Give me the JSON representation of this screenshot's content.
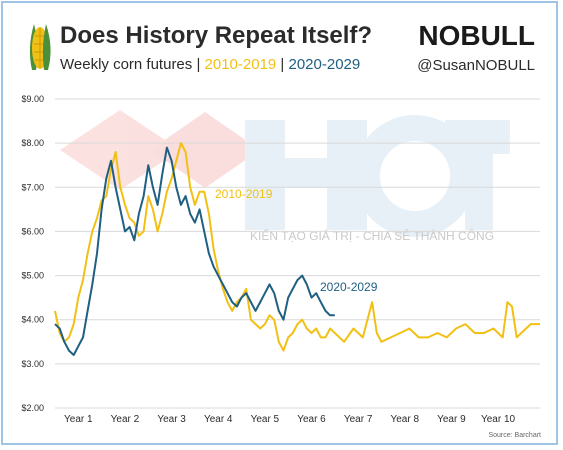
{
  "header": {
    "title": "Does History Repeat Itself?",
    "subtitle_prefix": "Weekly corn futures | ",
    "subtitle_series1": "2010-2019",
    "subtitle_sep": " | ",
    "subtitle_series2": "2020-2029",
    "brand": "NOBULL",
    "handle": "@SusanNOBULL"
  },
  "watermark": {
    "logo_text": "HCT",
    "tagline": "KIẾN TẠO GIÁ TRỊ - CHIA SẺ THÀNH CÔNG"
  },
  "source": "Source: Barchart",
  "colors": {
    "series_2010": "#f2c014",
    "series_2020": "#1f5f82",
    "grid": "#d9d9d9",
    "text": "#2b2b2b"
  },
  "icons": {
    "corn": "corn-icon"
  },
  "chart_data": {
    "type": "line",
    "title": "Does History Repeat Itself?",
    "subtitle": "Weekly corn futures | 2010-2019 | 2020-2029",
    "ylabel": "",
    "xlabel": "",
    "ylim": [
      2,
      9
    ],
    "xlim": [
      0,
      10.4
    ],
    "yticks": [
      "$2.00",
      "$3.00",
      "$4.00",
      "$5.00",
      "$6.00",
      "$7.00",
      "$8.00",
      "$9.00"
    ],
    "xtick_labels": [
      "Year 1",
      "Year 2",
      "Year 3",
      "Year 4",
      "Year 5",
      "Year 6",
      "Year 7",
      "Year 8",
      "Year 9",
      "Year 10"
    ],
    "grid": true,
    "series": [
      {
        "name": "2010-2019",
        "label": "2010-2019",
        "x": [
          0,
          0.1,
          0.2,
          0.3,
          0.4,
          0.5,
          0.6,
          0.7,
          0.8,
          0.9,
          1.0,
          1.1,
          1.2,
          1.3,
          1.4,
          1.5,
          1.6,
          1.7,
          1.8,
          1.9,
          2.0,
          2.1,
          2.2,
          2.3,
          2.4,
          2.5,
          2.6,
          2.7,
          2.8,
          2.9,
          3.0,
          3.1,
          3.2,
          3.3,
          3.4,
          3.5,
          3.6,
          3.7,
          3.8,
          3.9,
          4.0,
          4.1,
          4.2,
          4.3,
          4.4,
          4.5,
          4.6,
          4.7,
          4.8,
          4.9,
          5.0,
          5.1,
          5.2,
          5.3,
          5.4,
          5.5,
          5.6,
          5.7,
          5.8,
          5.9,
          6.0,
          6.2,
          6.4,
          6.6,
          6.8,
          6.9,
          7.0,
          7.2,
          7.4,
          7.6,
          7.8,
          8.0,
          8.2,
          8.4,
          8.6,
          8.8,
          9.0,
          9.2,
          9.4,
          9.6,
          9.7,
          9.8,
          9.9,
          10.0,
          10.2,
          10.4
        ],
        "values": [
          4.2,
          3.7,
          3.5,
          3.6,
          3.9,
          4.5,
          4.9,
          5.5,
          6.0,
          6.3,
          6.7,
          6.8,
          7.4,
          7.8,
          7.0,
          6.6,
          6.3,
          6.2,
          5.9,
          6.0,
          6.8,
          6.5,
          6.0,
          6.4,
          6.9,
          7.2,
          7.6,
          8.0,
          7.8,
          7.0,
          6.6,
          6.9,
          6.9,
          6.4,
          5.6,
          5.1,
          4.7,
          4.4,
          4.2,
          4.4,
          4.5,
          4.7,
          4.0,
          3.9,
          3.8,
          3.9,
          4.1,
          4.0,
          3.5,
          3.3,
          3.6,
          3.7,
          3.9,
          4.0,
          3.8,
          3.7,
          3.8,
          3.6,
          3.6,
          3.8,
          3.7,
          3.5,
          3.8,
          3.6,
          4.4,
          3.7,
          3.5,
          3.6,
          3.7,
          3.8,
          3.6,
          3.6,
          3.7,
          3.6,
          3.8,
          3.9,
          3.7,
          3.7,
          3.8,
          3.6,
          4.4,
          4.3,
          3.6,
          3.7,
          3.9,
          3.9
        ]
      },
      {
        "name": "2020-2029",
        "label": "2020-2029",
        "x": [
          0,
          0.1,
          0.2,
          0.3,
          0.4,
          0.5,
          0.6,
          0.7,
          0.8,
          0.9,
          1.0,
          1.1,
          1.2,
          1.3,
          1.4,
          1.5,
          1.6,
          1.7,
          1.8,
          1.9,
          2.0,
          2.1,
          2.2,
          2.3,
          2.4,
          2.5,
          2.6,
          2.7,
          2.8,
          2.9,
          3.0,
          3.1,
          3.2,
          3.3,
          3.4,
          3.5,
          3.6,
          3.7,
          3.8,
          3.9,
          4.0,
          4.1,
          4.2,
          4.3,
          4.4,
          4.5,
          4.6,
          4.7,
          4.8,
          4.9,
          5.0,
          5.1,
          5.2,
          5.3,
          5.4,
          5.5,
          5.6,
          5.7,
          5.8,
          5.9,
          6.0
        ],
        "values": [
          3.9,
          3.8,
          3.5,
          3.3,
          3.2,
          3.4,
          3.6,
          4.2,
          4.8,
          5.5,
          6.5,
          7.2,
          7.6,
          7.0,
          6.5,
          6.0,
          6.1,
          5.8,
          6.4,
          6.8,
          7.5,
          7.0,
          6.6,
          7.3,
          7.9,
          7.6,
          7.0,
          6.6,
          6.8,
          6.4,
          6.2,
          6.5,
          6.0,
          5.5,
          5.2,
          5.0,
          4.8,
          4.6,
          4.4,
          4.3,
          4.5,
          4.6,
          4.4,
          4.2,
          4.4,
          4.6,
          4.8,
          4.6,
          4.2,
          4.0,
          4.5,
          4.7,
          4.9,
          5.0,
          4.8,
          4.5,
          4.6,
          4.4,
          4.2,
          4.1,
          4.1
        ]
      }
    ]
  }
}
